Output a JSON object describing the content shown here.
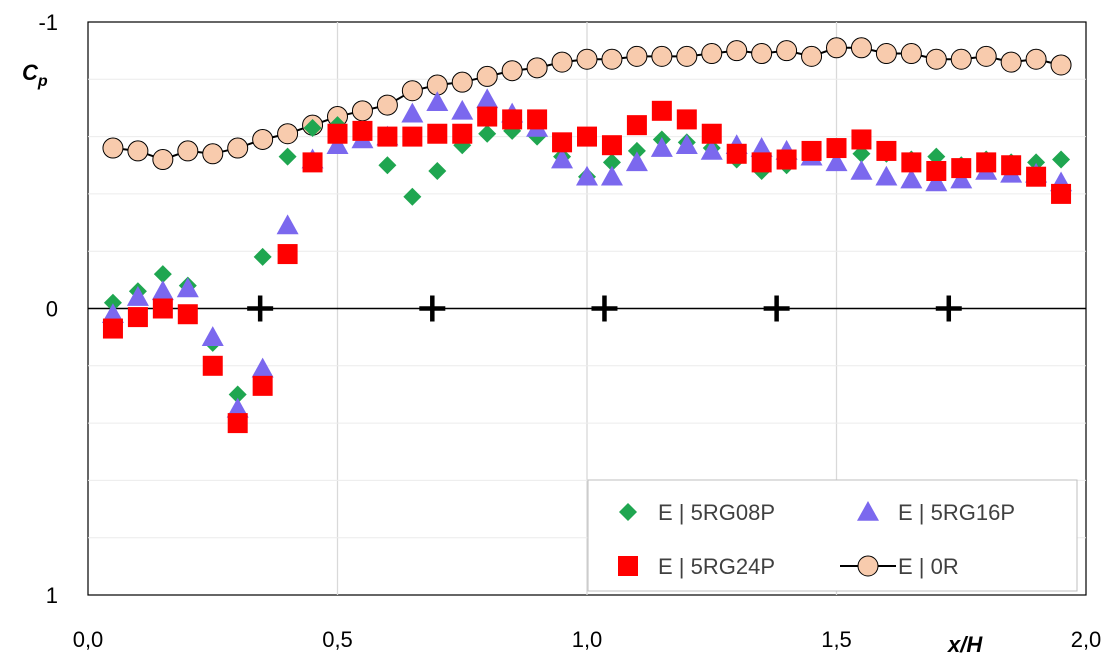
{
  "chart_data": {
    "type": "scatter",
    "title": "",
    "xlabel": "x/H",
    "ylabel_main": "C",
    "ylabel_sub": "p",
    "xlim": [
      0,
      2
    ],
    "ylim": [
      -1,
      1
    ],
    "y_inverted": true,
    "grid": true,
    "legend_position": "bottom-right",
    "x_tick_labels": [
      "0,0",
      "0,5",
      "1,0",
      "1,5",
      "2,0"
    ],
    "x_tick_values": [
      0,
      0.5,
      1.0,
      1.5,
      2.0
    ],
    "y_tick_labels": [
      "-1",
      "0",
      "1"
    ],
    "y_tick_values": [
      -1,
      0,
      1
    ],
    "markers_plus": [
      {
        "x": 0.345,
        "y": 0
      },
      {
        "x": 0.69,
        "y": 0
      },
      {
        "x": 1.035,
        "y": 0
      },
      {
        "x": 1.38,
        "y": 0
      },
      {
        "x": 1.725,
        "y": 0
      }
    ],
    "series": [
      {
        "name": "E | 0R",
        "marker": "circle-line",
        "color": "#f8cbad",
        "stroke": "#000000",
        "x": [
          0.05,
          0.1,
          0.15,
          0.2,
          0.25,
          0.3,
          0.35,
          0.4,
          0.45,
          0.5,
          0.55,
          0.6,
          0.65,
          0.7,
          0.75,
          0.8,
          0.85,
          0.9,
          0.95,
          1.0,
          1.05,
          1.1,
          1.15,
          1.2,
          1.25,
          1.3,
          1.35,
          1.4,
          1.45,
          1.5,
          1.55,
          1.6,
          1.65,
          1.7,
          1.75,
          1.8,
          1.85,
          1.9,
          1.95
        ],
        "y": [
          -0.56,
          -0.55,
          -0.52,
          -0.55,
          -0.54,
          -0.56,
          -0.59,
          -0.61,
          -0.64,
          -0.67,
          -0.69,
          -0.71,
          -0.76,
          -0.78,
          -0.79,
          -0.81,
          -0.83,
          -0.84,
          -0.86,
          -0.87,
          -0.87,
          -0.88,
          -0.88,
          -0.88,
          -0.89,
          -0.9,
          -0.89,
          -0.9,
          -0.88,
          -0.91,
          -0.91,
          -0.89,
          -0.89,
          -0.87,
          -0.87,
          -0.88,
          -0.86,
          -0.87,
          -0.85
        ]
      },
      {
        "name": "E | 5RG08P",
        "marker": "diamond",
        "color": "#1fa650",
        "x": [
          0.05,
          0.1,
          0.15,
          0.2,
          0.25,
          0.3,
          0.35,
          0.4,
          0.45,
          0.5,
          0.55,
          0.6,
          0.65,
          0.7,
          0.75,
          0.8,
          0.85,
          0.9,
          0.95,
          1.0,
          1.05,
          1.1,
          1.15,
          1.2,
          1.25,
          1.3,
          1.35,
          1.4,
          1.45,
          1.5,
          1.55,
          1.6,
          1.65,
          1.7,
          1.75,
          1.8,
          1.85,
          1.9,
          1.95
        ],
        "y": [
          -0.02,
          -0.06,
          -0.12,
          -0.08,
          0.12,
          0.3,
          -0.18,
          -0.53,
          -0.63,
          -0.64,
          -0.6,
          -0.5,
          -0.39,
          -0.48,
          -0.57,
          -0.61,
          -0.62,
          -0.6,
          -0.53,
          -0.46,
          -0.51,
          -0.55,
          -0.59,
          -0.58,
          -0.56,
          -0.52,
          -0.48,
          -0.5,
          -0.54,
          -0.55,
          -0.54,
          -0.54,
          -0.52,
          -0.53,
          -0.5,
          -0.52,
          -0.51,
          -0.51,
          -0.52
        ]
      },
      {
        "name": "E | 5RG16P",
        "marker": "triangle",
        "color": "#7b68ee",
        "x": [
          0.05,
          0.1,
          0.15,
          0.2,
          0.25,
          0.3,
          0.35,
          0.4,
          0.45,
          0.5,
          0.55,
          0.6,
          0.65,
          0.7,
          0.75,
          0.8,
          0.85,
          0.9,
          0.95,
          1.0,
          1.05,
          1.1,
          1.15,
          1.2,
          1.25,
          1.3,
          1.35,
          1.4,
          1.45,
          1.5,
          1.55,
          1.6,
          1.65,
          1.7,
          1.75,
          1.8,
          1.85,
          1.9,
          1.95
        ],
        "y": [
          0.02,
          -0.04,
          -0.06,
          -0.07,
          0.1,
          0.35,
          0.21,
          -0.29,
          -0.52,
          -0.57,
          -0.59,
          -0.6,
          -0.68,
          -0.72,
          -0.69,
          -0.73,
          -0.68,
          -0.63,
          -0.52,
          -0.46,
          -0.46,
          -0.51,
          -0.56,
          -0.57,
          -0.55,
          -0.57,
          -0.56,
          -0.55,
          -0.53,
          -0.51,
          -0.48,
          -0.46,
          -0.45,
          -0.44,
          -0.45,
          -0.48,
          -0.47,
          -0.47,
          -0.44
        ]
      },
      {
        "name": "E | 5RG24P",
        "marker": "square",
        "color": "#ff0000",
        "x": [
          0.05,
          0.1,
          0.15,
          0.2,
          0.25,
          0.3,
          0.35,
          0.4,
          0.45,
          0.5,
          0.55,
          0.6,
          0.65,
          0.7,
          0.75,
          0.8,
          0.85,
          0.9,
          0.95,
          1.0,
          1.05,
          1.1,
          1.15,
          1.2,
          1.25,
          1.3,
          1.35,
          1.4,
          1.45,
          1.5,
          1.55,
          1.6,
          1.65,
          1.7,
          1.75,
          1.8,
          1.85,
          1.9,
          1.95
        ],
        "y": [
          0.07,
          0.03,
          0.0,
          0.02,
          0.2,
          0.4,
          0.27,
          -0.19,
          -0.51,
          -0.61,
          -0.62,
          -0.6,
          -0.6,
          -0.61,
          -0.61,
          -0.67,
          -0.66,
          -0.66,
          -0.58,
          -0.6,
          -0.57,
          -0.64,
          -0.69,
          -0.66,
          -0.61,
          -0.54,
          -0.51,
          -0.52,
          -0.55,
          -0.56,
          -0.59,
          -0.55,
          -0.51,
          -0.48,
          -0.49,
          -0.51,
          -0.5,
          -0.46,
          -0.4
        ]
      }
    ],
    "legend": [
      {
        "label": "E | 5RG08P",
        "marker": "diamond",
        "color": "#1fa650"
      },
      {
        "label": "E | 5RG16P",
        "marker": "triangle",
        "color": "#7b68ee"
      },
      {
        "label": "E | 5RG24P",
        "marker": "square",
        "color": "#ff0000"
      },
      {
        "label": "E | 0R",
        "marker": "circle-line",
        "color": "#f8cbad"
      }
    ]
  }
}
